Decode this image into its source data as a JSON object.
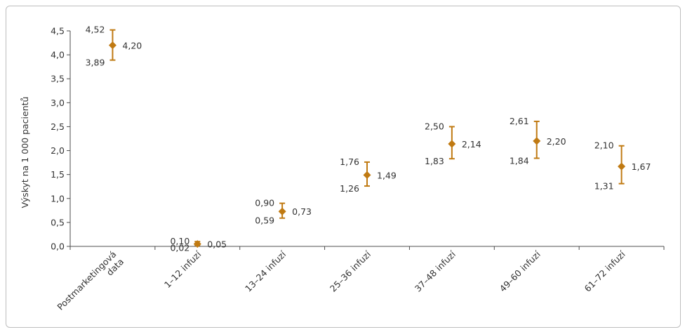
{
  "colors": {
    "marker": "#C07A12",
    "axis": "#4d4d4d",
    "text": "#333333"
  },
  "chart_data": {
    "type": "scatter",
    "title": "",
    "xlabel": "",
    "ylabel": "Výskyt na 1 000 pacientů",
    "ylim": [
      0,
      4.5
    ],
    "yticks": [
      "0,0",
      "0,5",
      "1,0",
      "1,5",
      "2,0",
      "2,5",
      "3,0",
      "3,5",
      "4,0",
      "4,5"
    ],
    "grid": false,
    "legend": "none",
    "categories": [
      "Postmarketingová data",
      "1–12 infuzí",
      "13–24 infuzí",
      "25–36 infuzí",
      "37–48 infuzí",
      "49–60 infuzí",
      "61–72 infuzí"
    ],
    "points": [
      {
        "value": 4.2,
        "low": 3.89,
        "high": 4.52,
        "value_label": "4,20",
        "low_label": "3,89",
        "high_label": "4,52"
      },
      {
        "value": 0.05,
        "low": 0.02,
        "high": 0.1,
        "value_label": "0,05",
        "low_label": "0,02",
        "high_label": "0,10"
      },
      {
        "value": 0.73,
        "low": 0.59,
        "high": 0.9,
        "value_label": "0,73",
        "low_label": "0,59",
        "high_label": "0,90"
      },
      {
        "value": 1.49,
        "low": 1.26,
        "high": 1.76,
        "value_label": "1,49",
        "low_label": "1,26",
        "high_label": "1,76"
      },
      {
        "value": 2.14,
        "low": 1.83,
        "high": 2.5,
        "value_label": "2,14",
        "low_label": "1,83",
        "high_label": "2,50"
      },
      {
        "value": 2.2,
        "low": 1.84,
        "high": 2.61,
        "value_label": "2,20",
        "low_label": "1,84",
        "high_label": "2,61"
      },
      {
        "value": 1.67,
        "low": 1.31,
        "high": 2.1,
        "value_label": "1,67",
        "low_label": "1,31",
        "high_label": "2,10"
      }
    ]
  }
}
